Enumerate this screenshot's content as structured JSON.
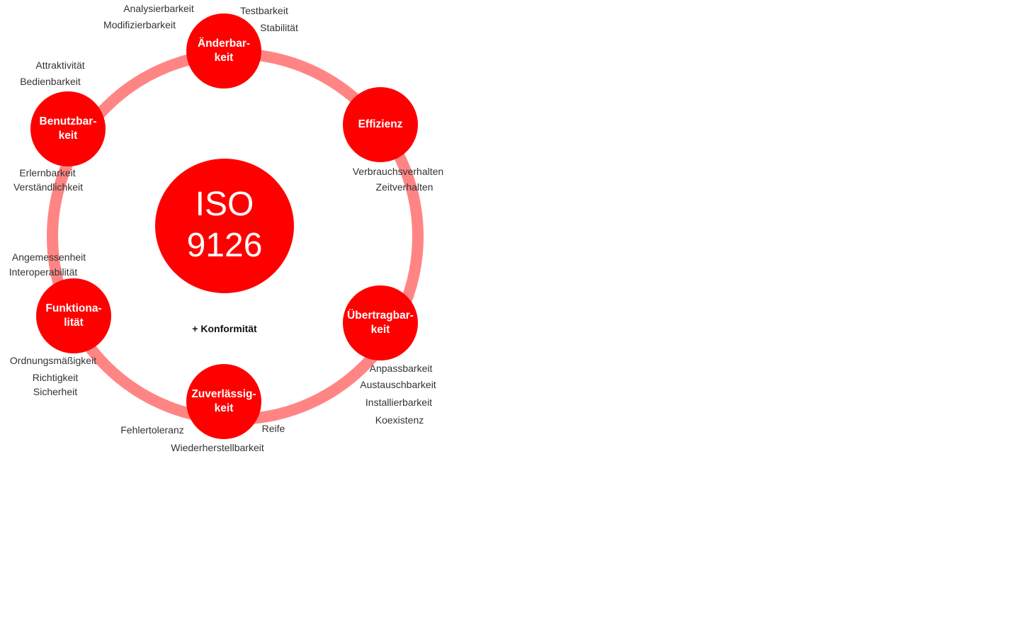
{
  "diagram": {
    "center_title": "ISO\n9126",
    "note": "+ Konformität",
    "colors": {
      "node_fill": "#ff0000",
      "ring": "#ff8585",
      "node_text": "#ffffff",
      "label_text": "#333333"
    },
    "categories": [
      {
        "name": "Änderbar-\nkeit",
        "subcharacteristics": [
          "Analysierbarkeit",
          "Testbarkeit",
          "Modifizierbarkeit",
          "Stabilität"
        ]
      },
      {
        "name": "Effizienz",
        "subcharacteristics": [
          "Verbrauchsverhalten",
          "Zeitverhalten"
        ]
      },
      {
        "name": "Übertragbar-\nkeit",
        "subcharacteristics": [
          "Anpassbarkeit",
          "Austauschbarkeit",
          "Installierbarkeit",
          "Koexistenz"
        ]
      },
      {
        "name": "Zuverlässig-\nkeit",
        "subcharacteristics": [
          "Fehlertoleranz",
          "Reife",
          "Wiederherstellbarkeit"
        ]
      },
      {
        "name": "Funktiona-\nlität",
        "subcharacteristics": [
          "Angemessenheit",
          "Interoperabilität",
          "Ordnungsmäßigkeit",
          "Richtigkeit",
          "Sicherheit"
        ]
      },
      {
        "name": "Benutzbar-\nkeit",
        "subcharacteristics": [
          "Attraktivität",
          "Bedienbarkeit",
          "Erlernbarkeit",
          "Verständlichkeit"
        ]
      }
    ]
  }
}
